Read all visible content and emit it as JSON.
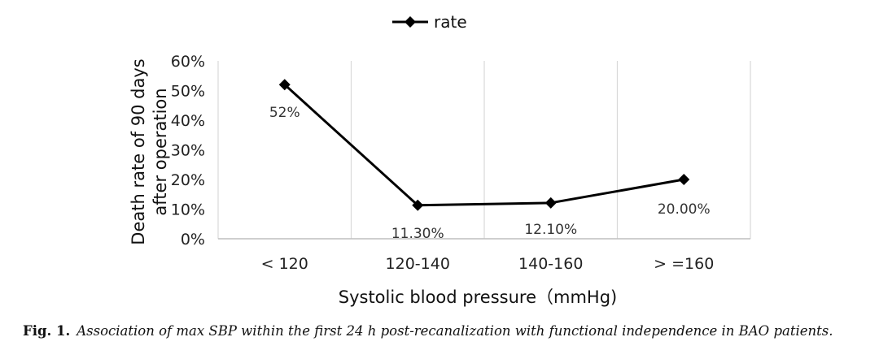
{
  "chart_data": {
    "type": "line",
    "categories": [
      "< 120",
      "120-140",
      "140-160",
      "> =160"
    ],
    "series": [
      {
        "name": "rate",
        "values": [
          52,
          11.3,
          12.1,
          20.0
        ],
        "labels": [
          "52%",
          "11.30%",
          "12.10%",
          "20.00%"
        ]
      }
    ],
    "xlabel": "Systolic blood pressure（mmHg)",
    "ylabel_lines": [
      "Death rate of 90 days",
      "after operation"
    ],
    "ylim": [
      0,
      60
    ],
    "yticks": [
      0,
      10,
      20,
      30,
      40,
      50,
      60
    ],
    "ytick_labels": [
      "0%",
      "10%",
      "20%",
      "30%",
      "40%",
      "50%",
      "60%"
    ],
    "legend": {
      "position": "top-center",
      "entries": [
        "rate"
      ]
    },
    "grid": {
      "vertical": true,
      "horizontal": false
    },
    "line_color": "#000000",
    "grid_color": "#d9d9d9"
  },
  "caption": {
    "number": "Fig. 1.",
    "text": "Association of max SBP within the first 24 h post-recanalization with functional independence in BAO patients."
  }
}
